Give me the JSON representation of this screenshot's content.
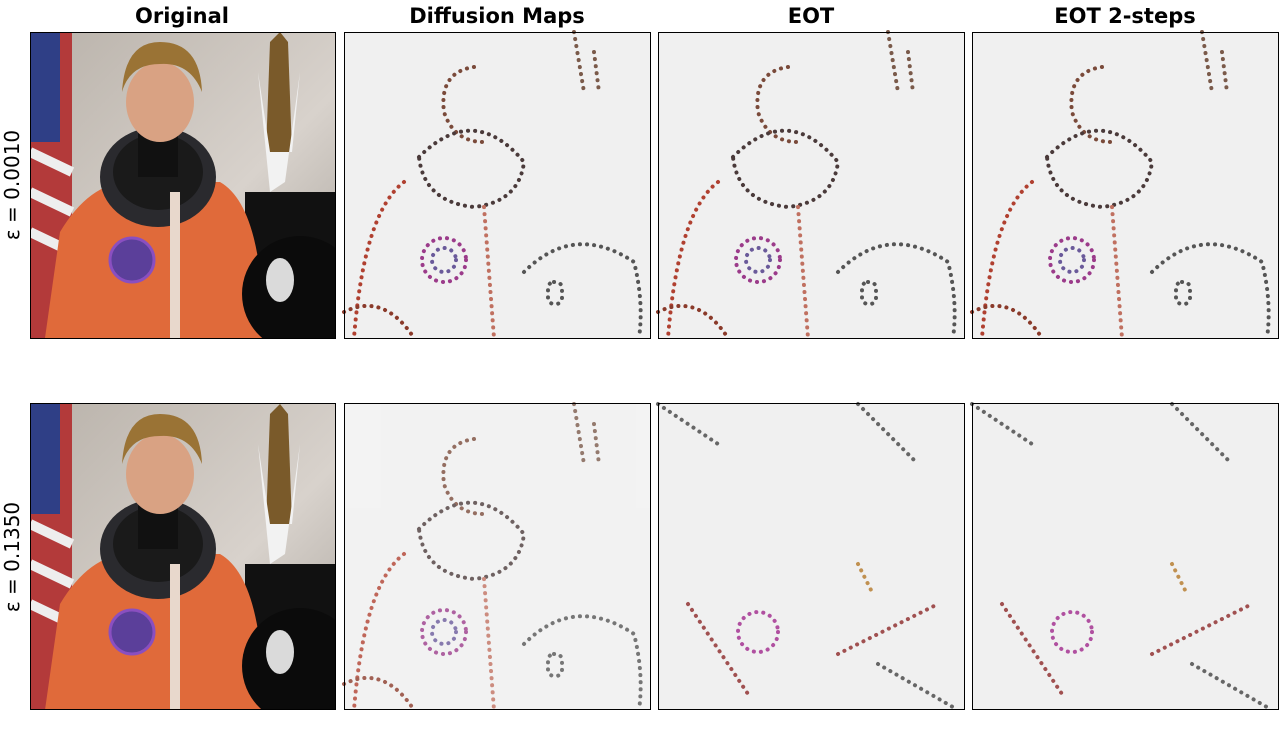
{
  "columns": [
    "Original",
    "Diffusion Maps",
    "EOT",
    "EOT 2-steps"
  ],
  "rows": [
    "ε = 0.0010",
    "ε = 0.1350"
  ]
}
